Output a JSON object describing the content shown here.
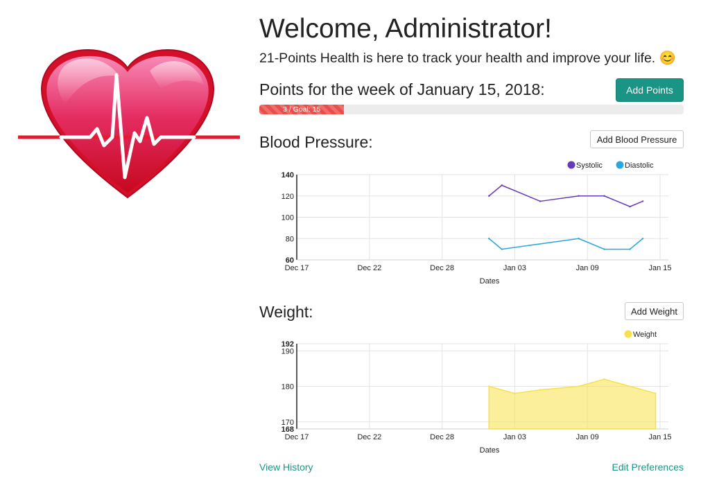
{
  "logo": {
    "icon": "heart-heartbeat-icon"
  },
  "header": {
    "title": "Welcome, Administrator!",
    "tagline": "21-Points Health is here to track your health and improve your life. 😊"
  },
  "points": {
    "title": "Points for the week of January 15, 2018:",
    "add_label": "Add Points",
    "progress_text": "3 / Goal: 15",
    "current": 3,
    "goal": 15,
    "bar_color": "#e94e4a"
  },
  "blood_pressure": {
    "title": "Blood Pressure:",
    "add_label": "Add Blood Pressure"
  },
  "weight": {
    "title": "Weight:",
    "add_label": "Add Weight"
  },
  "footer": {
    "view_history": "View History",
    "edit_preferences": "Edit Preferences"
  },
  "colors": {
    "accent": "#1a9485"
  },
  "chart_data": [
    {
      "type": "line",
      "xlabel": "Dates",
      "x_ticks": [
        "Dec 17",
        "Dec 22",
        "Dec 28",
        "Jan 03",
        "Jan 09",
        "Jan 15"
      ],
      "y_ticks": [
        140,
        120,
        100,
        80,
        60
      ],
      "ylim": [
        60,
        140
      ],
      "xlim": [
        "2017-12-17",
        "2018-01-15"
      ],
      "grid": true,
      "legend_position": "top-right",
      "series": [
        {
          "name": "Systolic",
          "color": "#673ab7",
          "points": [
            {
              "x": "2018-01-01",
              "y": 120
            },
            {
              "x": "2018-01-02",
              "y": 130
            },
            {
              "x": "2018-01-05",
              "y": 115
            },
            {
              "x": "2018-01-08",
              "y": 120
            },
            {
              "x": "2018-01-10",
              "y": 120
            },
            {
              "x": "2018-01-12",
              "y": 110
            },
            {
              "x": "2018-01-13",
              "y": 115
            }
          ]
        },
        {
          "name": "Diastolic",
          "color": "#29a8e0",
          "points": [
            {
              "x": "2018-01-01",
              "y": 80
            },
            {
              "x": "2018-01-02",
              "y": 70
            },
            {
              "x": "2018-01-08",
              "y": 80
            },
            {
              "x": "2018-01-10",
              "y": 70
            },
            {
              "x": "2018-01-12",
              "y": 70
            },
            {
              "x": "2018-01-13",
              "y": 80
            }
          ]
        }
      ]
    },
    {
      "type": "area",
      "xlabel": "Dates",
      "x_ticks": [
        "Dec 17",
        "Dec 22",
        "Dec 28",
        "Jan 03",
        "Jan 09",
        "Jan 15"
      ],
      "y_ticks": [
        192,
        190,
        180,
        170,
        168
      ],
      "ylim": [
        168,
        192
      ],
      "xlim": [
        "2017-12-17",
        "2018-01-15"
      ],
      "grid": true,
      "legend_position": "top-right",
      "series": [
        {
          "name": "Weight",
          "color": "#f7e14b",
          "points": [
            {
              "x": "2018-01-01",
              "y": 180
            },
            {
              "x": "2018-01-03",
              "y": 178
            },
            {
              "x": "2018-01-05",
              "y": 179
            },
            {
              "x": "2018-01-08",
              "y": 180
            },
            {
              "x": "2018-01-10",
              "y": 182
            },
            {
              "x": "2018-01-14",
              "y": 178
            }
          ]
        }
      ]
    }
  ]
}
